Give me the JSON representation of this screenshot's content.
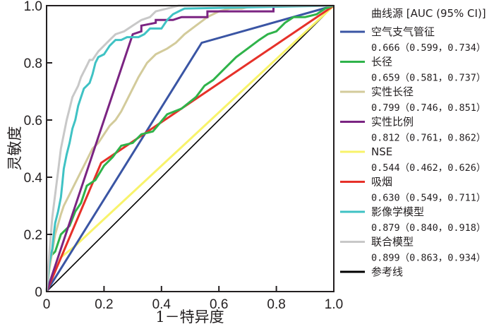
{
  "chart_data": {
    "type": "line",
    "title": "",
    "xlabel": "1－特异度",
    "ylabel": "灵敏度",
    "xlim": [
      0,
      1
    ],
    "ylim": [
      0,
      1
    ],
    "xticks": [
      "0",
      "0.2",
      "0.4",
      "0.6",
      "0.8",
      "1.0"
    ],
    "yticks": [
      "0",
      "0.2",
      "0.4",
      "0.6",
      "0.8",
      "1.0"
    ],
    "grid": false,
    "legend_title": "曲线源 [AUC (95% CI)]",
    "legend_placement": "right",
    "series": [
      {
        "name": "空气支气管征",
        "auc_text": "0.666（0.599，0.734）",
        "color": "#3a55a4",
        "x": [
          0,
          0.54,
          1.0
        ],
        "y": [
          0,
          0.87,
          1.0
        ]
      },
      {
        "name": "长径",
        "auc_text": "0.659（0.581，0.737）",
        "color": "#2fb34a",
        "x": [
          0,
          0.01,
          0.03,
          0.05,
          0.08,
          0.1,
          0.12,
          0.14,
          0.17,
          0.2,
          0.23,
          0.26,
          0.3,
          0.33,
          0.37,
          0.42,
          0.47,
          0.52,
          0.55,
          0.58,
          0.62,
          0.66,
          0.7,
          0.74,
          0.77,
          0.8,
          0.83,
          0.86,
          0.9,
          0.94,
          0.97,
          1.0
        ],
        "y": [
          0,
          0.12,
          0.14,
          0.2,
          0.23,
          0.28,
          0.31,
          0.37,
          0.39,
          0.44,
          0.47,
          0.51,
          0.52,
          0.55,
          0.56,
          0.62,
          0.64,
          0.68,
          0.72,
          0.74,
          0.78,
          0.82,
          0.85,
          0.88,
          0.9,
          0.91,
          0.94,
          0.96,
          0.96,
          0.97,
          0.99,
          1.0
        ]
      },
      {
        "name": "实性长径",
        "auc_text": "0.799（0.746，0.851）",
        "color": "#d3cb9b",
        "x": [
          0,
          0.01,
          0.02,
          0.03,
          0.05,
          0.06,
          0.08,
          0.1,
          0.12,
          0.14,
          0.16,
          0.18,
          0.2,
          0.22,
          0.24,
          0.26,
          0.28,
          0.3,
          0.32,
          0.35,
          0.38,
          0.42,
          0.45,
          0.48,
          0.52,
          0.56,
          0.6,
          0.64,
          0.68,
          0.72,
          0.78,
          1.0
        ],
        "y": [
          0,
          0.08,
          0.14,
          0.2,
          0.27,
          0.3,
          0.34,
          0.38,
          0.42,
          0.46,
          0.5,
          0.52,
          0.55,
          0.58,
          0.6,
          0.63,
          0.67,
          0.71,
          0.75,
          0.8,
          0.83,
          0.85,
          0.87,
          0.9,
          0.93,
          0.96,
          0.98,
          0.99,
          0.99,
          1.0,
          1.0,
          1.0
        ]
      },
      {
        "name": "实性比例",
        "auc_text": "0.812（0.761，0.862）",
        "color": "#7b2482",
        "x": [
          0,
          0.3,
          0.33,
          0.33,
          0.38,
          0.38,
          0.44,
          0.47,
          0.56,
          0.56,
          0.79,
          0.79,
          1.0
        ],
        "y": [
          0,
          0.9,
          0.91,
          0.93,
          0.94,
          0.95,
          0.95,
          0.96,
          0.96,
          0.98,
          0.98,
          1.0,
          1.0
        ]
      },
      {
        "name": "NSE",
        "auc_text": "0.544（0.462，0.626）",
        "color": "#f8f36a",
        "x": [
          0,
          0.05,
          0.1,
          1.0
        ],
        "y": [
          0,
          0.12,
          0.16,
          1.0
        ]
      },
      {
        "name": "吸烟",
        "auc_text": "0.630（0.549，0.711）",
        "color": "#e63129",
        "x": [
          0,
          0.19,
          1.0
        ],
        "y": [
          0,
          0.45,
          1.0
        ]
      },
      {
        "name": "影像学模型",
        "auc_text": "0.879（0.840，0.918）",
        "color": "#3fc2c4",
        "x": [
          0,
          0.005,
          0.01,
          0.02,
          0.025,
          0.03,
          0.04,
          0.05,
          0.055,
          0.06,
          0.07,
          0.08,
          0.09,
          0.1,
          0.11,
          0.12,
          0.13,
          0.14,
          0.15,
          0.16,
          0.17,
          0.18,
          0.2,
          0.22,
          0.24,
          0.26,
          0.28,
          0.3,
          0.32,
          0.34,
          0.36,
          0.4,
          0.42,
          0.44,
          0.46,
          0.48,
          1.0
        ],
        "y": [
          0,
          0.05,
          0.1,
          0.15,
          0.2,
          0.24,
          0.28,
          0.33,
          0.38,
          0.43,
          0.48,
          0.52,
          0.57,
          0.6,
          0.65,
          0.68,
          0.71,
          0.72,
          0.73,
          0.76,
          0.8,
          0.82,
          0.83,
          0.86,
          0.88,
          0.88,
          0.89,
          0.89,
          0.89,
          0.9,
          0.92,
          0.92,
          0.95,
          0.97,
          0.98,
          0.99,
          1.0
        ]
      },
      {
        "name": "联合模型",
        "auc_text": "0.899（0.863，0.934）",
        "color": "#c8c8c8",
        "x": [
          0,
          0.005,
          0.01,
          0.015,
          0.02,
          0.03,
          0.04,
          0.05,
          0.06,
          0.07,
          0.08,
          0.09,
          0.1,
          0.11,
          0.12,
          0.14,
          0.15,
          0.16,
          0.18,
          0.2,
          0.22,
          0.24,
          0.27,
          0.3,
          0.33,
          0.36,
          0.38,
          0.42,
          0.46,
          0.5,
          1.0
        ],
        "y": [
          0,
          0.07,
          0.14,
          0.2,
          0.26,
          0.34,
          0.42,
          0.5,
          0.55,
          0.6,
          0.64,
          0.68,
          0.7,
          0.72,
          0.75,
          0.79,
          0.81,
          0.81,
          0.84,
          0.86,
          0.88,
          0.9,
          0.91,
          0.93,
          0.95,
          0.96,
          0.98,
          0.99,
          1.0,
          1.0,
          1.0
        ]
      },
      {
        "name": "参考线",
        "auc_text": "",
        "color": "#000000",
        "x": [
          0,
          1
        ],
        "y": [
          0,
          1
        ]
      }
    ]
  }
}
